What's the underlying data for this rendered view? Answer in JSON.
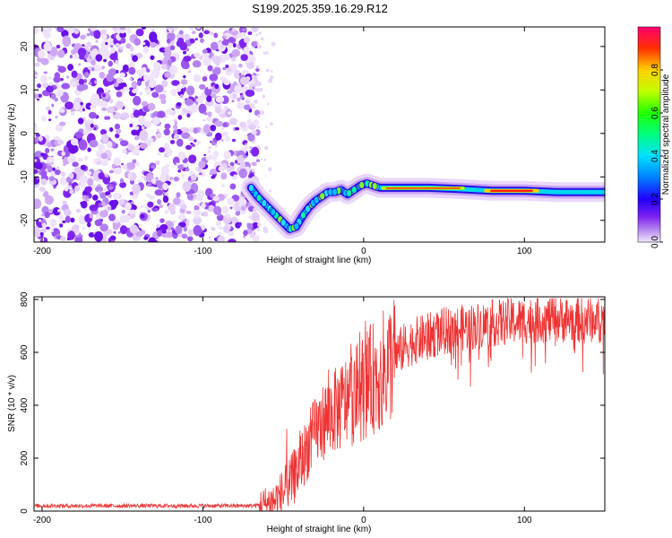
{
  "title": "S199.2025.359.16.29.R12",
  "chart_data": [
    {
      "type": "heatmap",
      "xlabel": "Height of straight line (km)",
      "ylabel": "Frequency (Hz)",
      "xlim": [
        -205,
        150
      ],
      "ylim": [
        -25,
        24.5
      ],
      "xticks": [
        -200,
        -100,
        0,
        100
      ],
      "yticks": [
        -20,
        -10,
        0,
        10,
        20
      ],
      "noise_region_x": [
        -205,
        -70
      ],
      "ridge": {
        "x": [
          -70,
          -66,
          -62,
          -58,
          -54,
          -50,
          -46,
          -42,
          -38,
          -34,
          -30,
          -26,
          -22,
          -18,
          -14,
          -10,
          -6,
          -2,
          2,
          6,
          10,
          20,
          40,
          60,
          80,
          100,
          120,
          150
        ],
        "y": [
          -12.5,
          -14.5,
          -16,
          -17.5,
          -19,
          -20.5,
          -22,
          -21.5,
          -19,
          -17,
          -15.5,
          -14.5,
          -13.5,
          -13.5,
          -13,
          -14,
          -13,
          -12,
          -11.5,
          -12,
          -12.5,
          -12.5,
          -12.5,
          -12.8,
          -13.2,
          -13.2,
          -13.5,
          -13.5
        ]
      },
      "colorbar": {
        "label": "Normalized spectral amplitude",
        "range": [
          0,
          1
        ],
        "ticks": [
          "0.0",
          "0.2",
          "0.4",
          "0.6",
          "0.8"
        ]
      }
    },
    {
      "type": "line",
      "xlabel": "Height of straight line (km)",
      "ylabel": "SNR (10 * v/v)",
      "xlim": [
        -205,
        150
      ],
      "ylim": [
        0,
        810
      ],
      "xticks": [
        -200,
        -100,
        0,
        100
      ],
      "yticks": [
        0,
        200,
        400,
        600,
        800
      ],
      "color": "#ee3333",
      "series": [
        {
          "name": "SNR",
          "x": [
            -205,
            -180,
            -150,
            -120,
            -90,
            -70,
            -62,
            -55,
            -50,
            -45,
            -40,
            -35,
            -30,
            -25,
            -20,
            -15,
            -10,
            -5,
            0,
            5,
            10,
            15,
            20,
            25,
            30,
            40,
            50,
            60,
            70,
            80,
            90,
            100,
            110,
            120,
            130,
            140,
            150
          ],
          "values": [
            20,
            20,
            20,
            20,
            20,
            20,
            25,
            40,
            70,
            110,
            170,
            240,
            300,
            340,
            370,
            390,
            420,
            440,
            470,
            500,
            520,
            555,
            590,
            620,
            640,
            660,
            680,
            690,
            700,
            710,
            715,
            720,
            725,
            725,
            725,
            725,
            725
          ]
        }
      ]
    }
  ]
}
